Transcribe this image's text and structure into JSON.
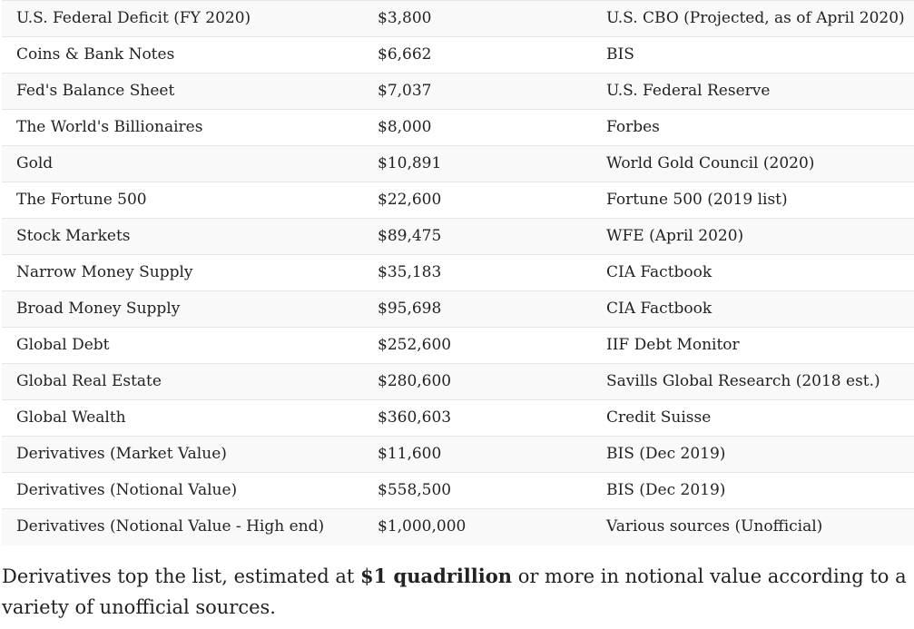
{
  "table": {
    "rows": [
      {
        "name": "U.S. Federal Deficit (FY 2020)",
        "value": "$3,800",
        "source": "U.S. CBO (Projected, as of April 2020)"
      },
      {
        "name": "Coins & Bank Notes",
        "value": "$6,662",
        "source": "BIS"
      },
      {
        "name": "Fed's Balance Sheet",
        "value": "$7,037",
        "source": "U.S. Federal Reserve"
      },
      {
        "name": "The World's Billionaires",
        "value": "$8,000",
        "source": "Forbes"
      },
      {
        "name": "Gold",
        "value": "$10,891",
        "source": "World Gold Council (2020)"
      },
      {
        "name": "The Fortune 500",
        "value": "$22,600",
        "source": "Fortune 500 (2019 list)"
      },
      {
        "name": "Stock Markets",
        "value": "$89,475",
        "source": "WFE (April 2020)"
      },
      {
        "name": "Narrow Money Supply",
        "value": "$35,183",
        "source": "CIA Factbook"
      },
      {
        "name": "Broad Money Supply",
        "value": "$95,698",
        "source": "CIA Factbook"
      },
      {
        "name": "Global Debt",
        "value": "$252,600",
        "source": "IIF Debt Monitor"
      },
      {
        "name": "Global Real Estate",
        "value": "$280,600",
        "source": "Savills Global Research (2018 est.)"
      },
      {
        "name": "Global Wealth",
        "value": "$360,603",
        "source": "Credit Suisse"
      },
      {
        "name": "Derivatives (Market Value)",
        "value": "$11,600",
        "source": "BIS (Dec 2019)"
      },
      {
        "name": "Derivatives (Notional Value)",
        "value": "$558,500",
        "source": "BIS (Dec 2019)"
      },
      {
        "name": "Derivatives (Notional Value - High end)",
        "value": "$1,000,000",
        "source": "Various sources (Unofficial)"
      }
    ]
  },
  "caption": {
    "before": "Derivatives top the list, estimated at ",
    "bold": "$1 quadrillion",
    "after": " or more in notional value according to a variety of unofficial sources."
  }
}
